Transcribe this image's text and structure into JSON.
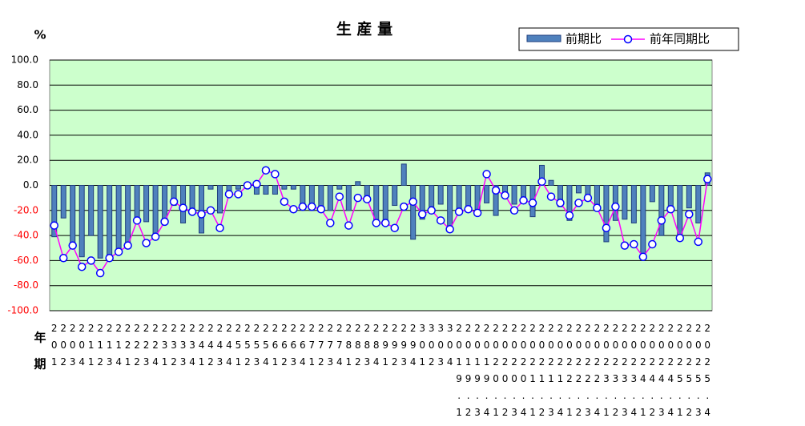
{
  "chart_data": {
    "type": "bar_line",
    "title": "生 産 量",
    "y_unit_label": "%",
    "x_row_labels": [
      "年",
      "期"
    ],
    "categories": [
      "201",
      "202",
      "203",
      "204",
      "211",
      "212",
      "213",
      "214",
      "221",
      "222",
      "223",
      "224",
      "231",
      "232",
      "233",
      "234",
      "241",
      "242",
      "243",
      "244",
      "251",
      "252",
      "253",
      "254",
      "261",
      "262",
      "263",
      "264",
      "271",
      "272",
      "273",
      "274",
      "281",
      "282",
      "283",
      "284",
      "291",
      "292",
      "293",
      "294",
      "301",
      "302",
      "303",
      "304",
      "2019.1",
      "2019.2",
      "2019.3",
      "2019.4",
      "2020.1",
      "2020.2",
      "2020.3",
      "2020.4",
      "2021.1",
      "2021.2",
      "2021.3",
      "2021.4",
      "2022.1",
      "2022.2",
      "2022.3",
      "2022.4",
      "2023.1",
      "2023.2",
      "2023.3",
      "2023.4",
      "2024.1",
      "2024.2",
      "2024.3",
      "2024.4",
      "2025.1",
      "2025.2",
      "2025.3",
      "2025.4"
    ],
    "series": [
      {
        "name": "前期比",
        "kind": "bar",
        "color": "#4f81bd",
        "edge_color": "#1f3f7f",
        "values": [
          -41,
          -26,
          -49,
          -57,
          -40,
          -58,
          -58,
          -51,
          -46,
          -29,
          -29,
          -40,
          -28,
          -16,
          -30,
          -20,
          -38,
          -3,
          -22,
          -7,
          -3,
          -1,
          -7,
          -7,
          -7,
          -3,
          -3,
          -17,
          -20,
          -18,
          -20,
          -3,
          -20,
          3,
          -10,
          -28,
          -28,
          -16,
          17,
          -43,
          -27,
          -17,
          -15,
          -37,
          -22,
          -20,
          -24,
          -14,
          -24,
          -9,
          -15,
          -14,
          -25,
          16,
          4,
          -17,
          -28,
          -6,
          -10,
          -20,
          -45,
          -28,
          -27,
          -30,
          -56,
          -13,
          -40,
          -20,
          -40,
          -18,
          -30,
          10
        ]
      },
      {
        "name": "前年同期比",
        "kind": "line",
        "color": "#ff00ff",
        "marker_color": "#0000ff",
        "values": [
          -32,
          -58,
          -48,
          -65,
          -60,
          -70,
          -58,
          -53,
          -48,
          -28,
          -46,
          -41,
          -29,
          -13,
          -18,
          -21,
          -23,
          -20,
          -34,
          -7,
          -7,
          0,
          1,
          12,
          9,
          -13,
          -19,
          -17,
          -17,
          -19,
          -30,
          -9,
          -32,
          -10,
          -11,
          -30,
          -30,
          -34,
          -17,
          -13,
          -23,
          -20,
          -28,
          -35,
          -21,
          -19,
          -22,
          9,
          -4,
          -8,
          -20,
          -12,
          -14,
          3,
          -9,
          -14,
          -24,
          -14,
          -10,
          -18,
          -34,
          -17,
          -48,
          -47,
          -57,
          -47,
          -28,
          -19,
          -42,
          -23,
          -45,
          5
        ]
      }
    ],
    "ylim": [
      -100,
      100
    ],
    "yticks": [
      {
        "value": -100,
        "label": "-100.0"
      },
      {
        "value": -80,
        "label": "-80.0"
      },
      {
        "value": -60,
        "label": "-60.0"
      },
      {
        "value": -40,
        "label": "-40.0"
      },
      {
        "value": -20,
        "label": "-20.0"
      },
      {
        "value": 0,
        "label": "0.0"
      },
      {
        "value": 20,
        "label": "20.0"
      },
      {
        "value": 40,
        "label": "40.0"
      },
      {
        "value": 60,
        "label": "60.0"
      },
      {
        "value": 80,
        "label": "80.0"
      },
      {
        "value": 100,
        "label": "100.0"
      }
    ],
    "negative_tick_color": "#ff0000",
    "plot_background": "#ccffcc",
    "grid": true,
    "legend": "top-right"
  }
}
